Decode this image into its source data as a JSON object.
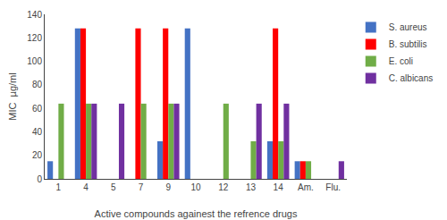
{
  "chart_data": {
    "type": "bar",
    "categories": [
      "1",
      "4",
      "5",
      "7",
      "9",
      "10",
      "12",
      "13",
      "14",
      "Am.",
      "Flu."
    ],
    "series": [
      {
        "name": "S. aureus",
        "color": "#4472C4",
        "values": [
          15,
          128,
          0,
          0,
          32,
          128,
          0,
          0,
          32,
          15,
          0
        ]
      },
      {
        "name": "B. subtilis",
        "color": "#FF0000",
        "values": [
          0,
          128,
          0,
          128,
          128,
          0,
          0,
          0,
          128,
          15,
          0
        ]
      },
      {
        "name": "E. coli",
        "color": "#70AD47",
        "values": [
          64,
          64,
          0,
          64,
          64,
          0,
          64,
          32,
          32,
          15,
          0
        ]
      },
      {
        "name": "C. albicans",
        "color": "#7030A0",
        "values": [
          0,
          64,
          64,
          0,
          64,
          0,
          0,
          64,
          64,
          0,
          15
        ]
      }
    ],
    "xlabel": "Active compounds againest the refrence drugs",
    "ylabel": "MIC  µg/ml",
    "ylim": [
      0,
      140
    ],
    "yticks": [
      0,
      20,
      40,
      60,
      80,
      100,
      120,
      140
    ],
    "grid": false,
    "legend": "right"
  }
}
